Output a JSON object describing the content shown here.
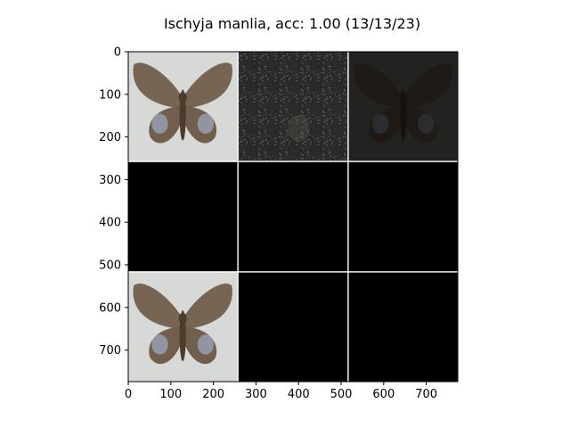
{
  "title": "Ischyja manlia, acc: 1.00 (13/13/23)",
  "chart_data": {
    "type": "image_grid",
    "title": "Ischyja manlia, acc: 1.00 (13/13/23)",
    "xlabel": "",
    "ylabel": "",
    "xlim": [
      0,
      774
    ],
    "ylim": [
      774,
      0
    ],
    "xticks": [
      0,
      100,
      200,
      300,
      400,
      500,
      600,
      700
    ],
    "yticks": [
      0,
      100,
      200,
      300,
      400,
      500,
      600,
      700
    ],
    "grid": false,
    "panel_size": 256,
    "panel_gap": 3,
    "rows": 3,
    "cols": 3,
    "panels": [
      {
        "row": 0,
        "col": 0,
        "content": "moth",
        "brightness": 1.0,
        "background": "light"
      },
      {
        "row": 0,
        "col": 1,
        "content": "noise",
        "brightness": 0.25,
        "background": "dark"
      },
      {
        "row": 0,
        "col": 2,
        "content": "moth",
        "brightness": 0.3,
        "background": "dark"
      },
      {
        "row": 1,
        "col": 0,
        "content": "blank"
      },
      {
        "row": 1,
        "col": 1,
        "content": "blank"
      },
      {
        "row": 1,
        "col": 2,
        "content": "blank"
      },
      {
        "row": 2,
        "col": 0,
        "content": "moth",
        "brightness": 1.0,
        "background": "light"
      },
      {
        "row": 2,
        "col": 1,
        "content": "blank"
      },
      {
        "row": 2,
        "col": 2,
        "content": "blank"
      }
    ],
    "colors": {
      "moth_wing": "#6b5845",
      "moth_body": "#4a3c2e",
      "light_bg": "#d7d9d6",
      "blank": "#000000",
      "separator": "#ffffff"
    }
  }
}
